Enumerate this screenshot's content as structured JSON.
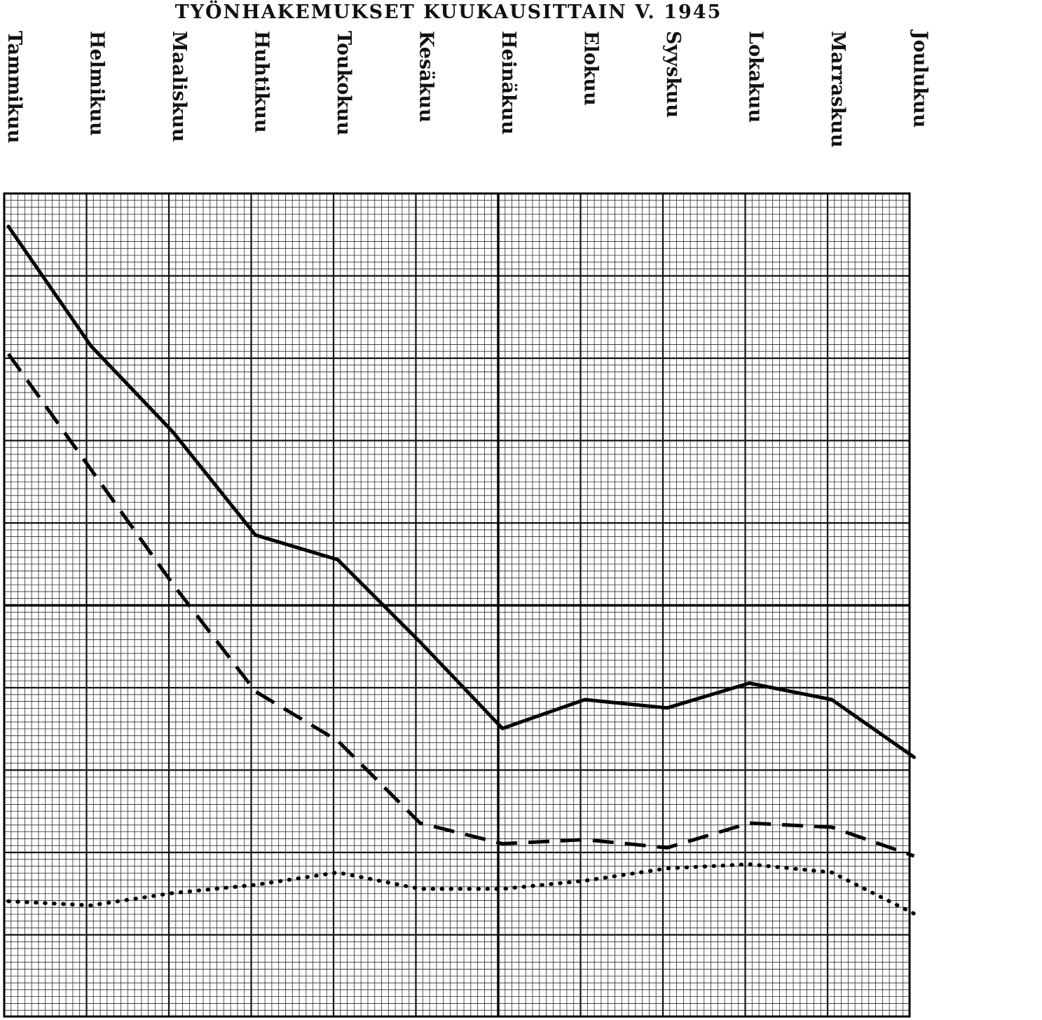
{
  "title": "TYÖNHAKEMUKSET KUUKAUSITTAIN V. 1945",
  "chart_data": {
    "type": "line",
    "title": "TYÖNHAKEMUKSET KUUKAUSITTAIN V. 1945",
    "categories": [
      "Tammikuu",
      "Helmikuu",
      "Maaliskuu",
      "Huhtikuu",
      "Toukokuu",
      "Kesäkuu",
      "Heinäkuu",
      "Elokuu",
      "Syyskuu",
      "Lokakuu",
      "Marraskuu",
      "Joulukuu"
    ],
    "xlabel": "",
    "ylabel": "",
    "grid": true,
    "legend": "none",
    "ylim": [
      0,
      100
    ],
    "series": [
      {
        "style": "solid",
        "values": [
          96.0,
          81.5,
          71.0,
          58.5,
          55.5,
          45.5,
          35.0,
          38.5,
          37.5,
          40.5,
          38.5,
          31.5
        ]
      },
      {
        "style": "dashed",
        "values": [
          80.5,
          66.5,
          52.5,
          39.5,
          33.5,
          23.5,
          21.0,
          21.5,
          20.5,
          23.5,
          23.0,
          19.5
        ]
      },
      {
        "style": "dotted",
        "values": [
          14.0,
          13.5,
          15.0,
          16.0,
          17.5,
          15.5,
          15.5,
          16.5,
          18.0,
          18.5,
          17.5,
          12.5
        ]
      }
    ]
  }
}
